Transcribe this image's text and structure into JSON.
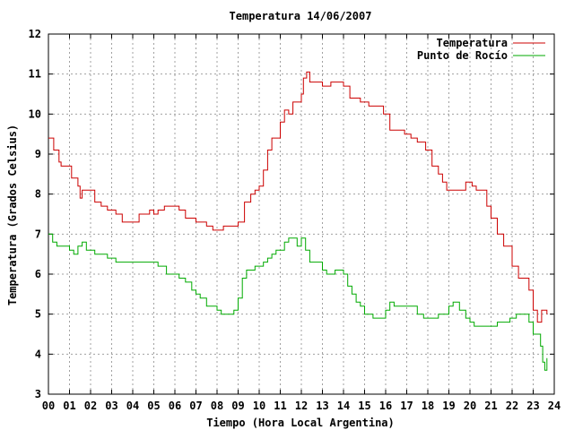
{
  "chart_data": {
    "type": "line",
    "title": "Temperatura 14/06/2007",
    "xlabel": "Tiempo (Hora Local Argentina)",
    "ylabel": "Temperatura (Grados Celsius)",
    "xlim": [
      0,
      24
    ],
    "ylim": [
      3,
      12
    ],
    "x_tick_labels": [
      "00",
      "01",
      "02",
      "03",
      "04",
      "05",
      "06",
      "07",
      "08",
      "09",
      "10",
      "11",
      "12",
      "13",
      "14",
      "15",
      "16",
      "17",
      "18",
      "19",
      "20",
      "21",
      "22",
      "23",
      "24"
    ],
    "y_tick_labels": [
      "3",
      "4",
      "5",
      "6",
      "7",
      "8",
      "9",
      "10",
      "11",
      "12"
    ],
    "grid": true,
    "legend_position": "top-right",
    "series": [
      {
        "name": "Temperatura",
        "color": "#cc0000",
        "x": [
          0.0,
          0.25,
          0.5,
          0.6,
          1.0,
          1.1,
          1.4,
          1.5,
          1.6,
          2.0,
          2.2,
          2.5,
          2.8,
          3.0,
          3.2,
          3.5,
          3.7,
          4.0,
          4.3,
          4.6,
          4.8,
          5.0,
          5.2,
          5.5,
          6.0,
          6.2,
          6.5,
          7.0,
          7.5,
          7.8,
          8.0,
          8.3,
          8.5,
          8.8,
          9.0,
          9.3,
          9.6,
          9.8,
          10.0,
          10.2,
          10.4,
          10.6,
          10.8,
          11.0,
          11.2,
          11.4,
          11.6,
          11.8,
          12.0,
          12.1,
          12.25,
          12.4,
          12.6,
          12.8,
          13.0,
          13.2,
          13.4,
          13.6,
          13.8,
          14.0,
          14.3,
          14.6,
          14.8,
          15.0,
          15.2,
          15.5,
          15.7,
          15.9,
          16.2,
          16.5,
          16.7,
          16.9,
          17.2,
          17.5,
          17.7,
          17.9,
          18.2,
          18.5,
          18.7,
          18.9,
          19.2,
          19.5,
          19.8,
          20.1,
          20.3,
          20.5,
          20.8,
          21.0,
          21.3,
          21.6,
          22.0,
          22.3,
          22.5,
          22.8,
          23.0,
          23.2,
          23.4,
          23.55,
          23.65
        ],
        "y": [
          9.4,
          9.1,
          8.8,
          8.7,
          8.7,
          8.4,
          8.2,
          7.9,
          8.1,
          8.1,
          7.8,
          7.7,
          7.6,
          7.6,
          7.5,
          7.3,
          7.3,
          7.3,
          7.5,
          7.5,
          7.6,
          7.5,
          7.6,
          7.7,
          7.7,
          7.6,
          7.4,
          7.3,
          7.2,
          7.1,
          7.1,
          7.2,
          7.2,
          7.2,
          7.3,
          7.8,
          8.0,
          8.1,
          8.2,
          8.6,
          9.1,
          9.4,
          9.4,
          9.8,
          10.1,
          10.0,
          10.3,
          10.3,
          10.5,
          10.9,
          11.05,
          10.8,
          10.8,
          10.8,
          10.7,
          10.7,
          10.8,
          10.8,
          10.8,
          10.7,
          10.4,
          10.4,
          10.3,
          10.3,
          10.2,
          10.2,
          10.2,
          10.0,
          9.6,
          9.6,
          9.6,
          9.5,
          9.4,
          9.3,
          9.3,
          9.1,
          8.7,
          8.5,
          8.3,
          8.1,
          8.1,
          8.1,
          8.3,
          8.2,
          8.1,
          8.1,
          7.7,
          7.4,
          7.0,
          6.7,
          6.2,
          5.9,
          5.9,
          5.6,
          5.1,
          4.8,
          5.1,
          5.1,
          5.0
        ]
      },
      {
        "name": "Punto de Rocío",
        "color": "#00aa00",
        "x": [
          0.0,
          0.2,
          0.4,
          0.5,
          0.8,
          1.0,
          1.2,
          1.4,
          1.6,
          1.8,
          2.0,
          2.2,
          2.4,
          2.6,
          2.8,
          3.0,
          3.2,
          3.4,
          3.6,
          3.8,
          4.0,
          4.2,
          4.4,
          4.6,
          4.8,
          5.0,
          5.2,
          5.4,
          5.6,
          5.8,
          6.0,
          6.2,
          6.5,
          6.8,
          7.0,
          7.2,
          7.5,
          7.8,
          8.0,
          8.2,
          8.5,
          8.8,
          9.0,
          9.2,
          9.4,
          9.6,
          9.8,
          10.0,
          10.2,
          10.4,
          10.6,
          10.8,
          11.0,
          11.2,
          11.4,
          11.6,
          11.8,
          12.0,
          12.2,
          12.4,
          12.6,
          12.8,
          13.0,
          13.2,
          13.4,
          13.6,
          13.8,
          14.0,
          14.2,
          14.4,
          14.6,
          14.8,
          15.0,
          15.2,
          15.4,
          15.6,
          15.8,
          16.0,
          16.2,
          16.4,
          16.6,
          16.8,
          17.0,
          17.2,
          17.5,
          17.8,
          18.0,
          18.2,
          18.5,
          18.8,
          19.0,
          19.2,
          19.5,
          19.8,
          20.0,
          20.2,
          20.5,
          20.8,
          21.0,
          21.3,
          21.6,
          21.9,
          22.2,
          22.5,
          22.8,
          23.0,
          23.2,
          23.35,
          23.45,
          23.55,
          23.65
        ],
        "y": [
          7.0,
          6.8,
          6.7,
          6.7,
          6.7,
          6.6,
          6.5,
          6.7,
          6.8,
          6.6,
          6.6,
          6.5,
          6.5,
          6.5,
          6.4,
          6.4,
          6.3,
          6.3,
          6.3,
          6.3,
          6.3,
          6.3,
          6.3,
          6.3,
          6.3,
          6.3,
          6.2,
          6.2,
          6.0,
          6.0,
          6.0,
          5.9,
          5.8,
          5.6,
          5.5,
          5.4,
          5.2,
          5.2,
          5.1,
          5.0,
          5.0,
          5.1,
          5.4,
          5.9,
          6.1,
          6.1,
          6.2,
          6.2,
          6.3,
          6.4,
          6.5,
          6.6,
          6.6,
          6.8,
          6.9,
          6.9,
          6.7,
          6.9,
          6.6,
          6.3,
          6.3,
          6.3,
          6.1,
          6.0,
          6.0,
          6.1,
          6.1,
          6.0,
          5.7,
          5.5,
          5.3,
          5.2,
          5.0,
          5.0,
          4.9,
          4.9,
          4.9,
          5.1,
          5.3,
          5.2,
          5.2,
          5.2,
          5.2,
          5.2,
          5.0,
          4.9,
          4.9,
          4.9,
          5.0,
          5.0,
          5.2,
          5.3,
          5.1,
          4.9,
          4.8,
          4.7,
          4.7,
          4.7,
          4.7,
          4.8,
          4.8,
          4.9,
          5.0,
          5.0,
          4.8,
          4.5,
          4.5,
          4.2,
          3.8,
          3.6,
          3.9
        ]
      }
    ]
  }
}
